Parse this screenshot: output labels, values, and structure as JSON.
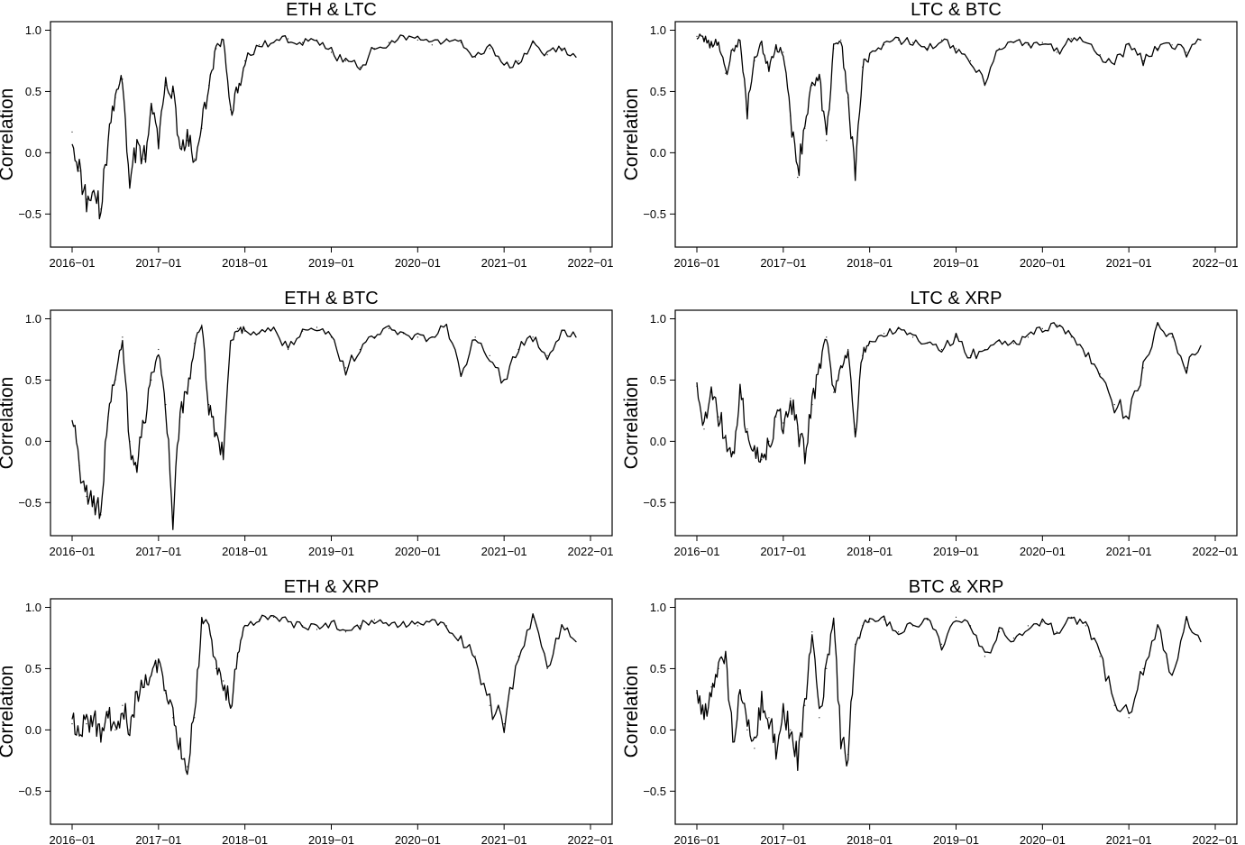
{
  "chart_data": [
    {
      "type": "line",
      "title": "ETH & LTC",
      "xlabel": "",
      "ylabel": "Correlation",
      "ylim": [
        -0.77,
        1.07
      ],
      "xlim": [
        "2016-01",
        "2022-01"
      ],
      "x_ticks": [
        "2016−01",
        "2017−01",
        "2018−01",
        "2019−01",
        "2020−01",
        "2021−01",
        "2022−01"
      ],
      "y_ticks": [
        "1.0",
        "0.5",
        "0.0",
        "−0.5"
      ],
      "color": "#000000",
      "series": [
        {
          "x": [
            "2016-01",
            "2016-02",
            "2016-03",
            "2016-04",
            "2016-05",
            "2016-06",
            "2016-07",
            "2016-08",
            "2016-09",
            "2016-10",
            "2016-11",
            "2016-12",
            "2017-01",
            "2017-02",
            "2017-03",
            "2017-04",
            "2017-05",
            "2017-06",
            "2017-07",
            "2017-08",
            "2017-09",
            "2017-10",
            "2017-11",
            "2017-12",
            "2018-01",
            "2018-03",
            "2018-05",
            "2018-07",
            "2018-09",
            "2018-11",
            "2019-01",
            "2019-03",
            "2019-05",
            "2019-07",
            "2019-09",
            "2019-11",
            "2020-01",
            "2020-03",
            "2020-05",
            "2020-07",
            "2020-09",
            "2020-11",
            "2021-01",
            "2021-03",
            "2021-05",
            "2021-07",
            "2021-09",
            "2021-11"
          ],
          "values": [
            0.17,
            -0.15,
            -0.38,
            -0.32,
            -0.46,
            0.1,
            0.45,
            0.6,
            -0.25,
            0.1,
            -0.05,
            0.35,
            0.1,
            0.55,
            0.5,
            0.05,
            0.1,
            -0.05,
            0.2,
            0.55,
            0.85,
            0.92,
            0.35,
            0.5,
            0.75,
            0.88,
            0.9,
            0.93,
            0.9,
            0.92,
            0.82,
            0.75,
            0.7,
            0.85,
            0.9,
            0.95,
            0.92,
            0.88,
            0.93,
            0.9,
            0.78,
            0.85,
            0.72,
            0.75,
            0.9,
            0.8,
            0.85,
            0.78
          ]
        }
      ]
    },
    {
      "type": "line",
      "title": "LTC & BTC",
      "xlabel": "",
      "ylabel": "Correlation",
      "ylim": [
        -0.77,
        1.07
      ],
      "xlim": [
        "2016-01",
        "2022-01"
      ],
      "x_ticks": [
        "2016−01",
        "2017−01",
        "2018−01",
        "2019−01",
        "2020−01",
        "2021−01",
        "2022−01"
      ],
      "y_ticks": [
        "1.0",
        "0.5",
        "0.0",
        "−0.5"
      ],
      "color": "#000000",
      "series": [
        {
          "x": [
            "2016-01",
            "2016-02",
            "2016-03",
            "2016-04",
            "2016-05",
            "2016-06",
            "2016-07",
            "2016-08",
            "2016-09",
            "2016-10",
            "2016-11",
            "2016-12",
            "2017-01",
            "2017-02",
            "2017-03",
            "2017-04",
            "2017-05",
            "2017-06",
            "2017-07",
            "2017-08",
            "2017-09",
            "2017-10",
            "2017-11",
            "2017-12",
            "2018-01",
            "2018-03",
            "2018-05",
            "2018-07",
            "2018-09",
            "2018-11",
            "2019-01",
            "2019-03",
            "2019-05",
            "2019-07",
            "2019-09",
            "2019-11",
            "2020-01",
            "2020-03",
            "2020-05",
            "2020-07",
            "2020-09",
            "2020-11",
            "2021-01",
            "2021-03",
            "2021-05",
            "2021-07",
            "2021-09",
            "2021-11"
          ],
          "values": [
            0.95,
            0.93,
            0.88,
            0.9,
            0.65,
            0.85,
            0.9,
            0.35,
            0.75,
            0.88,
            0.7,
            0.85,
            0.82,
            0.3,
            -0.2,
            0.2,
            0.55,
            0.6,
            0.1,
            0.85,
            0.92,
            0.45,
            -0.15,
            0.7,
            0.8,
            0.88,
            0.92,
            0.9,
            0.85,
            0.92,
            0.85,
            0.75,
            0.55,
            0.85,
            0.9,
            0.88,
            0.9,
            0.82,
            0.93,
            0.9,
            0.8,
            0.72,
            0.88,
            0.75,
            0.85,
            0.88,
            0.82,
            0.92
          ]
        }
      ]
    },
    {
      "type": "line",
      "title": "ETH & BTC",
      "xlabel": "",
      "ylabel": "Correlation",
      "ylim": [
        -0.77,
        1.07
      ],
      "xlim": [
        "2016-01",
        "2022-01"
      ],
      "x_ticks": [
        "2016−01",
        "2017−01",
        "2018−01",
        "2019−01",
        "2020−01",
        "2021−01",
        "2022−01"
      ],
      "y_ticks": [
        "1.0",
        "0.5",
        "0.0",
        "−0.5"
      ],
      "color": "#000000",
      "series": [
        {
          "x": [
            "2016-01",
            "2016-02",
            "2016-03",
            "2016-04",
            "2016-05",
            "2016-06",
            "2016-07",
            "2016-08",
            "2016-09",
            "2016-10",
            "2016-11",
            "2016-12",
            "2017-01",
            "2017-02",
            "2017-03",
            "2017-04",
            "2017-05",
            "2017-06",
            "2017-07",
            "2017-08",
            "2017-09",
            "2017-10",
            "2017-11",
            "2017-12",
            "2018-01",
            "2018-03",
            "2018-05",
            "2018-07",
            "2018-09",
            "2018-11",
            "2019-01",
            "2019-03",
            "2019-05",
            "2019-07",
            "2019-09",
            "2019-11",
            "2020-01",
            "2020-03",
            "2020-05",
            "2020-07",
            "2020-09",
            "2020-11",
            "2021-01",
            "2021-03",
            "2021-05",
            "2021-07",
            "2021-09",
            "2021-11"
          ],
          "values": [
            0.17,
            -0.2,
            -0.45,
            -0.5,
            -0.6,
            0.2,
            0.5,
            0.85,
            0.0,
            -0.2,
            0.15,
            0.5,
            0.75,
            0.3,
            -0.65,
            0.2,
            0.4,
            0.8,
            0.95,
            0.3,
            0.05,
            -0.15,
            0.8,
            0.92,
            0.9,
            0.88,
            0.93,
            0.75,
            0.9,
            0.93,
            0.85,
            0.6,
            0.75,
            0.85,
            0.92,
            0.88,
            0.85,
            0.85,
            0.95,
            0.55,
            0.85,
            0.7,
            0.5,
            0.75,
            0.85,
            0.7,
            0.9,
            0.85
          ]
        }
      ]
    },
    {
      "type": "line",
      "title": "LTC & XRP",
      "xlabel": "",
      "ylabel": "Correlation",
      "ylim": [
        -0.77,
        1.07
      ],
      "xlim": [
        "2016-01",
        "2022-01"
      ],
      "x_ticks": [
        "2016−01",
        "2017−01",
        "2018−01",
        "2019−01",
        "2020−01",
        "2021−01",
        "2022−01"
      ],
      "y_ticks": [
        "1.0",
        "0.5",
        "0.0",
        "−0.5"
      ],
      "color": "#000000",
      "series": [
        {
          "x": [
            "2016-01",
            "2016-02",
            "2016-03",
            "2016-04",
            "2016-05",
            "2016-06",
            "2016-07",
            "2016-08",
            "2016-09",
            "2016-10",
            "2016-11",
            "2016-12",
            "2017-01",
            "2017-02",
            "2017-03",
            "2017-04",
            "2017-05",
            "2017-06",
            "2017-07",
            "2017-08",
            "2017-09",
            "2017-10",
            "2017-11",
            "2017-12",
            "2018-01",
            "2018-03",
            "2018-05",
            "2018-07",
            "2018-09",
            "2018-11",
            "2019-01",
            "2019-03",
            "2019-05",
            "2019-07",
            "2019-09",
            "2019-11",
            "2020-01",
            "2020-03",
            "2020-05",
            "2020-07",
            "2020-09",
            "2020-11",
            "2021-01",
            "2021-03",
            "2021-05",
            "2021-07",
            "2021-09",
            "2021-11"
          ],
          "values": [
            0.45,
            0.1,
            0.4,
            0.2,
            0.05,
            -0.1,
            0.4,
            0.1,
            -0.05,
            -0.15,
            0.0,
            0.2,
            0.15,
            0.35,
            0.1,
            -0.1,
            0.3,
            0.6,
            0.85,
            0.4,
            0.6,
            0.75,
            0.1,
            0.7,
            0.8,
            0.88,
            0.92,
            0.85,
            0.8,
            0.75,
            0.85,
            0.7,
            0.75,
            0.82,
            0.8,
            0.85,
            0.92,
            0.95,
            0.85,
            0.7,
            0.55,
            0.3,
            0.2,
            0.6,
            0.95,
            0.85,
            0.6,
            0.78
          ]
        }
      ]
    },
    {
      "type": "line",
      "title": "ETH & XRP",
      "xlabel": "",
      "ylabel": "Correlation",
      "ylim": [
        -0.77,
        1.07
      ],
      "xlim": [
        "2016-01",
        "2022-01"
      ],
      "x_ticks": [
        "2016−01",
        "2017−01",
        "2018−01",
        "2019−01",
        "2020−01",
        "2021−01",
        "2022−01"
      ],
      "y_ticks": [
        "1.0",
        "0.5",
        "0.0",
        "−0.5"
      ],
      "color": "#000000",
      "series": [
        {
          "x": [
            "2016-01",
            "2016-02",
            "2016-03",
            "2016-04",
            "2016-05",
            "2016-06",
            "2016-07",
            "2016-08",
            "2016-09",
            "2016-10",
            "2016-11",
            "2016-12",
            "2017-01",
            "2017-02",
            "2017-03",
            "2017-04",
            "2017-05",
            "2017-06",
            "2017-07",
            "2017-08",
            "2017-09",
            "2017-10",
            "2017-11",
            "2017-12",
            "2018-01",
            "2018-03",
            "2018-05",
            "2018-07",
            "2018-09",
            "2018-11",
            "2019-01",
            "2019-03",
            "2019-05",
            "2019-07",
            "2019-09",
            "2019-11",
            "2020-01",
            "2020-03",
            "2020-05",
            "2020-07",
            "2020-09",
            "2020-11",
            "2021-01",
            "2021-03",
            "2021-05",
            "2021-07",
            "2021-09",
            "2021-11"
          ],
          "values": [
            0.05,
            -0.05,
            0.05,
            0.1,
            -0.1,
            0.15,
            0.0,
            0.2,
            0.0,
            0.3,
            0.35,
            0.45,
            0.55,
            0.3,
            0.1,
            -0.1,
            -0.3,
            0.1,
            0.9,
            0.85,
            0.5,
            0.4,
            0.2,
            0.6,
            0.85,
            0.9,
            0.92,
            0.88,
            0.85,
            0.82,
            0.88,
            0.8,
            0.85,
            0.9,
            0.85,
            0.88,
            0.85,
            0.9,
            0.85,
            0.75,
            0.6,
            0.2,
            0.05,
            0.6,
            0.92,
            0.5,
            0.85,
            0.72
          ]
        }
      ]
    },
    {
      "type": "line",
      "title": "BTC & XRP",
      "xlabel": "",
      "ylabel": "Correlation",
      "ylim": [
        -0.77,
        1.07
      ],
      "xlim": [
        "2016-01",
        "2022-01"
      ],
      "x_ticks": [
        "2016−01",
        "2017−01",
        "2018−01",
        "2019−01",
        "2020−01",
        "2021−01",
        "2022−01"
      ],
      "y_ticks": [
        "1.0",
        "0.5",
        "0.0",
        "−0.5"
      ],
      "color": "#000000",
      "series": [
        {
          "x": [
            "2016-01",
            "2016-02",
            "2016-03",
            "2016-04",
            "2016-05",
            "2016-06",
            "2016-07",
            "2016-08",
            "2016-09",
            "2016-10",
            "2016-11",
            "2016-12",
            "2017-01",
            "2017-02",
            "2017-03",
            "2017-04",
            "2017-05",
            "2017-06",
            "2017-07",
            "2017-08",
            "2017-09",
            "2017-10",
            "2017-11",
            "2017-12",
            "2018-01",
            "2018-03",
            "2018-05",
            "2018-07",
            "2018-09",
            "2018-11",
            "2019-01",
            "2019-03",
            "2019-05",
            "2019-07",
            "2019-09",
            "2019-11",
            "2020-01",
            "2020-03",
            "2020-05",
            "2020-07",
            "2020-09",
            "2020-11",
            "2021-01",
            "2021-03",
            "2021-05",
            "2021-07",
            "2021-09",
            "2021-11"
          ],
          "values": [
            0.3,
            0.1,
            0.35,
            0.5,
            0.6,
            -0.1,
            0.3,
            0.0,
            -0.15,
            0.25,
            0.1,
            -0.2,
            0.15,
            0.0,
            -0.25,
            0.2,
            0.8,
            0.1,
            0.5,
            0.9,
            -0.1,
            -0.2,
            0.7,
            0.85,
            0.88,
            0.9,
            0.8,
            0.85,
            0.9,
            0.7,
            0.92,
            0.85,
            0.6,
            0.8,
            0.75,
            0.85,
            0.88,
            0.8,
            0.92,
            0.85,
            0.6,
            0.2,
            0.1,
            0.5,
            0.85,
            0.45,
            0.9,
            0.72
          ]
        }
      ]
    }
  ]
}
